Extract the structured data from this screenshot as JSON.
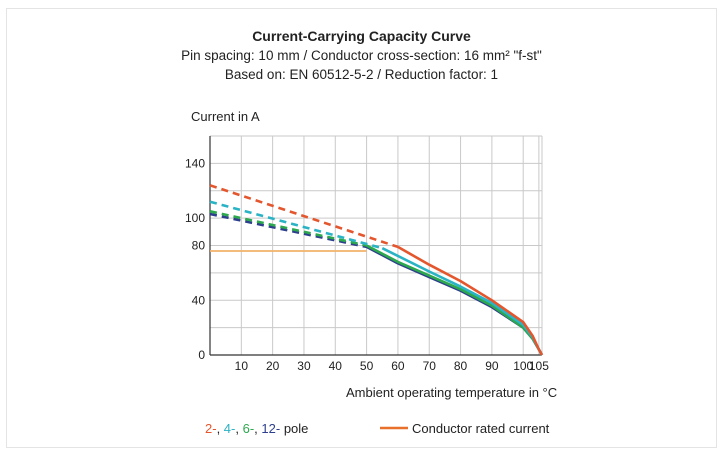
{
  "chart_data": {
    "type": "line",
    "title": "Current-Carrying Capacity Curve",
    "subtitle_lines": [
      "Pin spacing: 10 mm / Conductor cross-section: 16 mm² \"f-st\"",
      "Based on: EN 60512-5-2 / Reduction factor: 1"
    ],
    "ylabel": "Current in A",
    "xlabel": "Ambient operating temperature in °C",
    "xlim": [
      0,
      106
    ],
    "ylim": [
      0,
      160
    ],
    "x_ticks": [
      10,
      20,
      30,
      40,
      50,
      60,
      70,
      80,
      90,
      100,
      105
    ],
    "y_ticks": [
      0,
      40,
      80,
      100,
      140
    ],
    "grid": true,
    "series": [
      {
        "name": "2-",
        "color": "#e4572e",
        "dashed": [
          [
            0,
            124
          ],
          [
            60,
            79
          ]
        ],
        "solid": [
          [
            60,
            79
          ],
          [
            70,
            66
          ],
          [
            80,
            54
          ],
          [
            90,
            40
          ],
          [
            100,
            24
          ],
          [
            103,
            14
          ],
          [
            105,
            4
          ],
          [
            106,
            0
          ]
        ]
      },
      {
        "name": "4-",
        "color": "#2ab3c4",
        "dashed": [
          [
            0,
            112
          ],
          [
            55,
            78
          ]
        ],
        "solid": [
          [
            55,
            78
          ],
          [
            70,
            61
          ],
          [
            80,
            50
          ],
          [
            90,
            38
          ],
          [
            100,
            22
          ],
          [
            103,
            13
          ],
          [
            105,
            4
          ],
          [
            106,
            0
          ]
        ]
      },
      {
        "name": "6-",
        "color": "#2da84e",
        "dashed": [
          [
            0,
            105
          ],
          [
            50,
            80
          ]
        ],
        "solid": [
          [
            50,
            80
          ],
          [
            60,
            68
          ],
          [
            70,
            58
          ],
          [
            80,
            48
          ],
          [
            90,
            36
          ],
          [
            100,
            20
          ],
          [
            103,
            12
          ],
          [
            105,
            4
          ],
          [
            106,
            0
          ]
        ]
      },
      {
        "name": "12-",
        "color": "#2c3e8c",
        "dashed": [
          [
            0,
            103
          ],
          [
            50,
            79
          ]
        ],
        "solid": [
          [
            50,
            79
          ],
          [
            60,
            67
          ],
          [
            70,
            57
          ],
          [
            80,
            47
          ],
          [
            90,
            35
          ],
          [
            100,
            20
          ],
          [
            103,
            12
          ],
          [
            105,
            4
          ],
          [
            106,
            0
          ]
        ]
      }
    ],
    "rated_current": {
      "name": "Conductor rated current",
      "color": "#f2b36a",
      "points": [
        [
          0,
          76
        ],
        [
          50,
          76
        ]
      ]
    },
    "legend": {
      "poles": [
        {
          "text": "2-",
          "color": "#e4572e"
        },
        {
          "text": "4-",
          "color": "#2ab3c4"
        },
        {
          "text": "6-",
          "color": "#2da84e"
        },
        {
          "text": "12-",
          "color": "#2c3e8c"
        }
      ],
      "pole_suffix": "pole",
      "rated_label": "Conductor rated current",
      "rated_color": "#e8702a",
      "position": "bottom"
    }
  }
}
